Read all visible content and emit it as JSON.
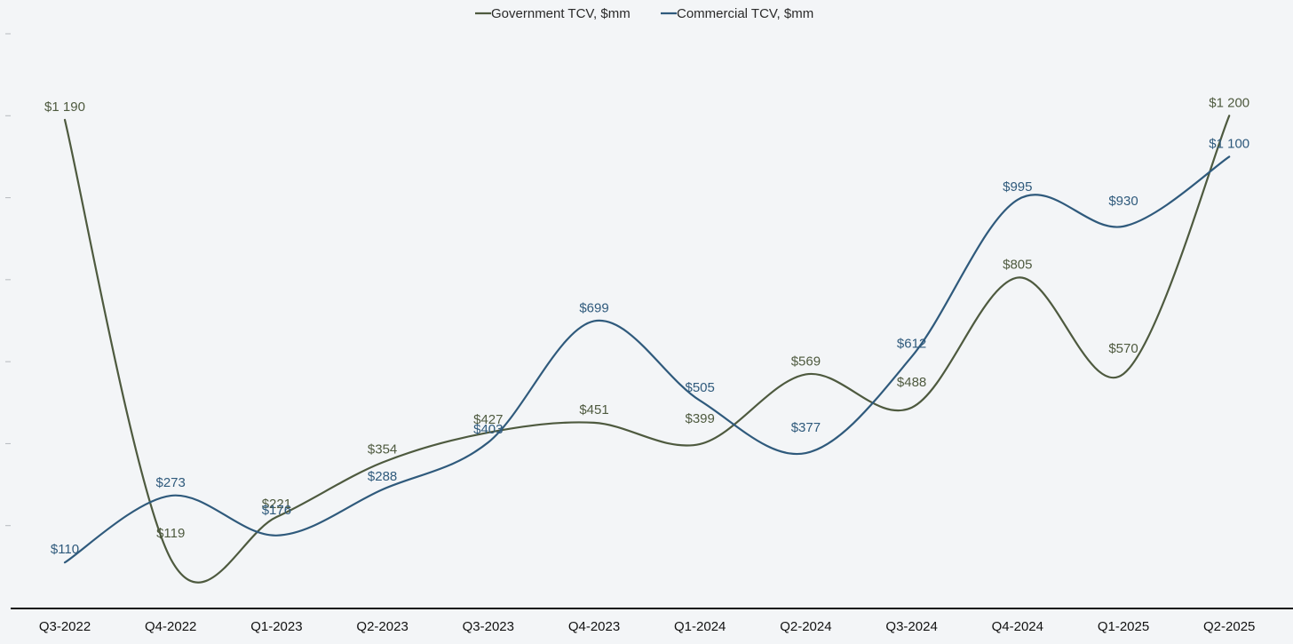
{
  "chart_data": {
    "type": "line",
    "title": "",
    "xlabel": "",
    "ylabel": "",
    "categories": [
      "Q3-2022",
      "Q4-2022",
      "Q1-2023",
      "Q2-2023",
      "Q3-2023",
      "Q4-2023",
      "Q1-2024",
      "Q2-2024",
      "Q3-2024",
      "Q4-2024",
      "Q1-2025",
      "Q2-2025"
    ],
    "ylim": [
      0,
      1400
    ],
    "grid": false,
    "legend_position": "top-center",
    "series": [
      {
        "name": "Government TCV, $mm",
        "color": "#4e5a3f",
        "values": [
          1190,
          119,
          221,
          354,
          427,
          451,
          399,
          569,
          488,
          805,
          570,
          1200
        ],
        "labels": [
          "$1 190",
          "$119",
          "$221",
          "$354",
          "$427",
          "$451",
          "$399",
          "$569",
          "$488",
          "$805",
          "$570",
          "$1 200"
        ]
      },
      {
        "name": "Commercial TCV, $mm",
        "color": "#2f5a7c",
        "values": [
          110,
          273,
          176,
          288,
          403,
          699,
          505,
          377,
          612,
          995,
          930,
          1100
        ],
        "labels": [
          "$110",
          "$273",
          "$176",
          "$288",
          "$403",
          "$699",
          "$505",
          "$377",
          "$612",
          "$995",
          "$930",
          "$1 100"
        ]
      }
    ]
  }
}
